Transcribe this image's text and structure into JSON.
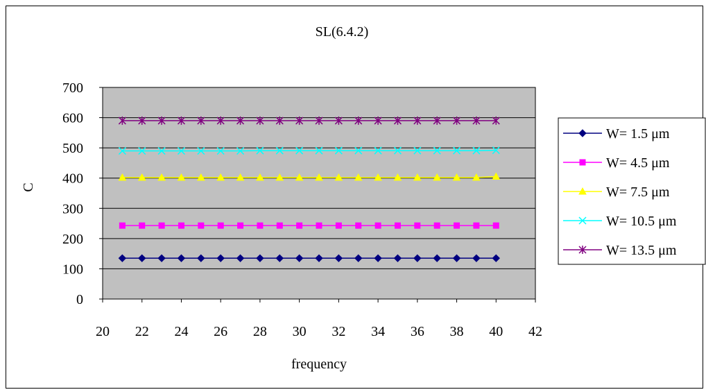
{
  "chart_data": {
    "type": "line",
    "title": "SL(6.4.2)",
    "xlabel": "frequency",
    "ylabel": "C",
    "xlim": [
      20,
      42
    ],
    "ylim": [
      0,
      700
    ],
    "x_ticks": [
      "20",
      "22",
      "24",
      "26",
      "28",
      "30",
      "32",
      "34",
      "36",
      "38",
      "40",
      "42"
    ],
    "y_ticks": [
      "0",
      "100",
      "200",
      "300",
      "400",
      "500",
      "600",
      "700"
    ],
    "grid": "horizontal",
    "legend_position": "right",
    "plot_background": "#c0c0c0",
    "x": [
      21,
      22,
      23,
      24,
      25,
      26,
      27,
      28,
      29,
      30,
      31,
      32,
      33,
      34,
      35,
      36,
      37,
      38,
      39,
      40
    ],
    "series": [
      {
        "name": "W= 1.5 μm",
        "color": "#000080",
        "marker": "diamond",
        "values": [
          135,
          135,
          135,
          135,
          135,
          135,
          135,
          135,
          135,
          135,
          135,
          135,
          135,
          135,
          135,
          135,
          135,
          135,
          135,
          135
        ]
      },
      {
        "name": "W= 4.5 μm",
        "color": "#ff00ff",
        "marker": "square",
        "values": [
          243,
          243,
          243,
          243,
          243,
          243,
          243,
          243,
          243,
          243,
          243,
          243,
          243,
          243,
          243,
          243,
          243,
          243,
          243,
          243
        ]
      },
      {
        "name": "W= 7.5 μm",
        "color": "#ffff00",
        "marker": "triangle",
        "values": [
          402,
          402,
          402,
          402,
          402,
          402,
          402,
          402,
          402,
          402,
          402,
          402,
          402,
          402,
          402,
          402,
          402,
          402,
          402,
          405
        ]
      },
      {
        "name": "W= 10.5 μm",
        "color": "#00ffff",
        "marker": "x",
        "values": [
          490,
          490,
          490,
          490,
          490,
          490,
          490,
          491,
          491,
          491,
          491,
          491,
          491,
          491,
          491,
          491,
          491,
          491,
          491,
          492
        ]
      },
      {
        "name": "W= 13.5 μm",
        "color": "#800080",
        "marker": "star",
        "values": [
          590,
          590,
          590,
          590,
          590,
          590,
          590,
          590,
          590,
          590,
          590,
          590,
          590,
          590,
          590,
          590,
          590,
          590,
          590,
          590
        ]
      }
    ]
  }
}
